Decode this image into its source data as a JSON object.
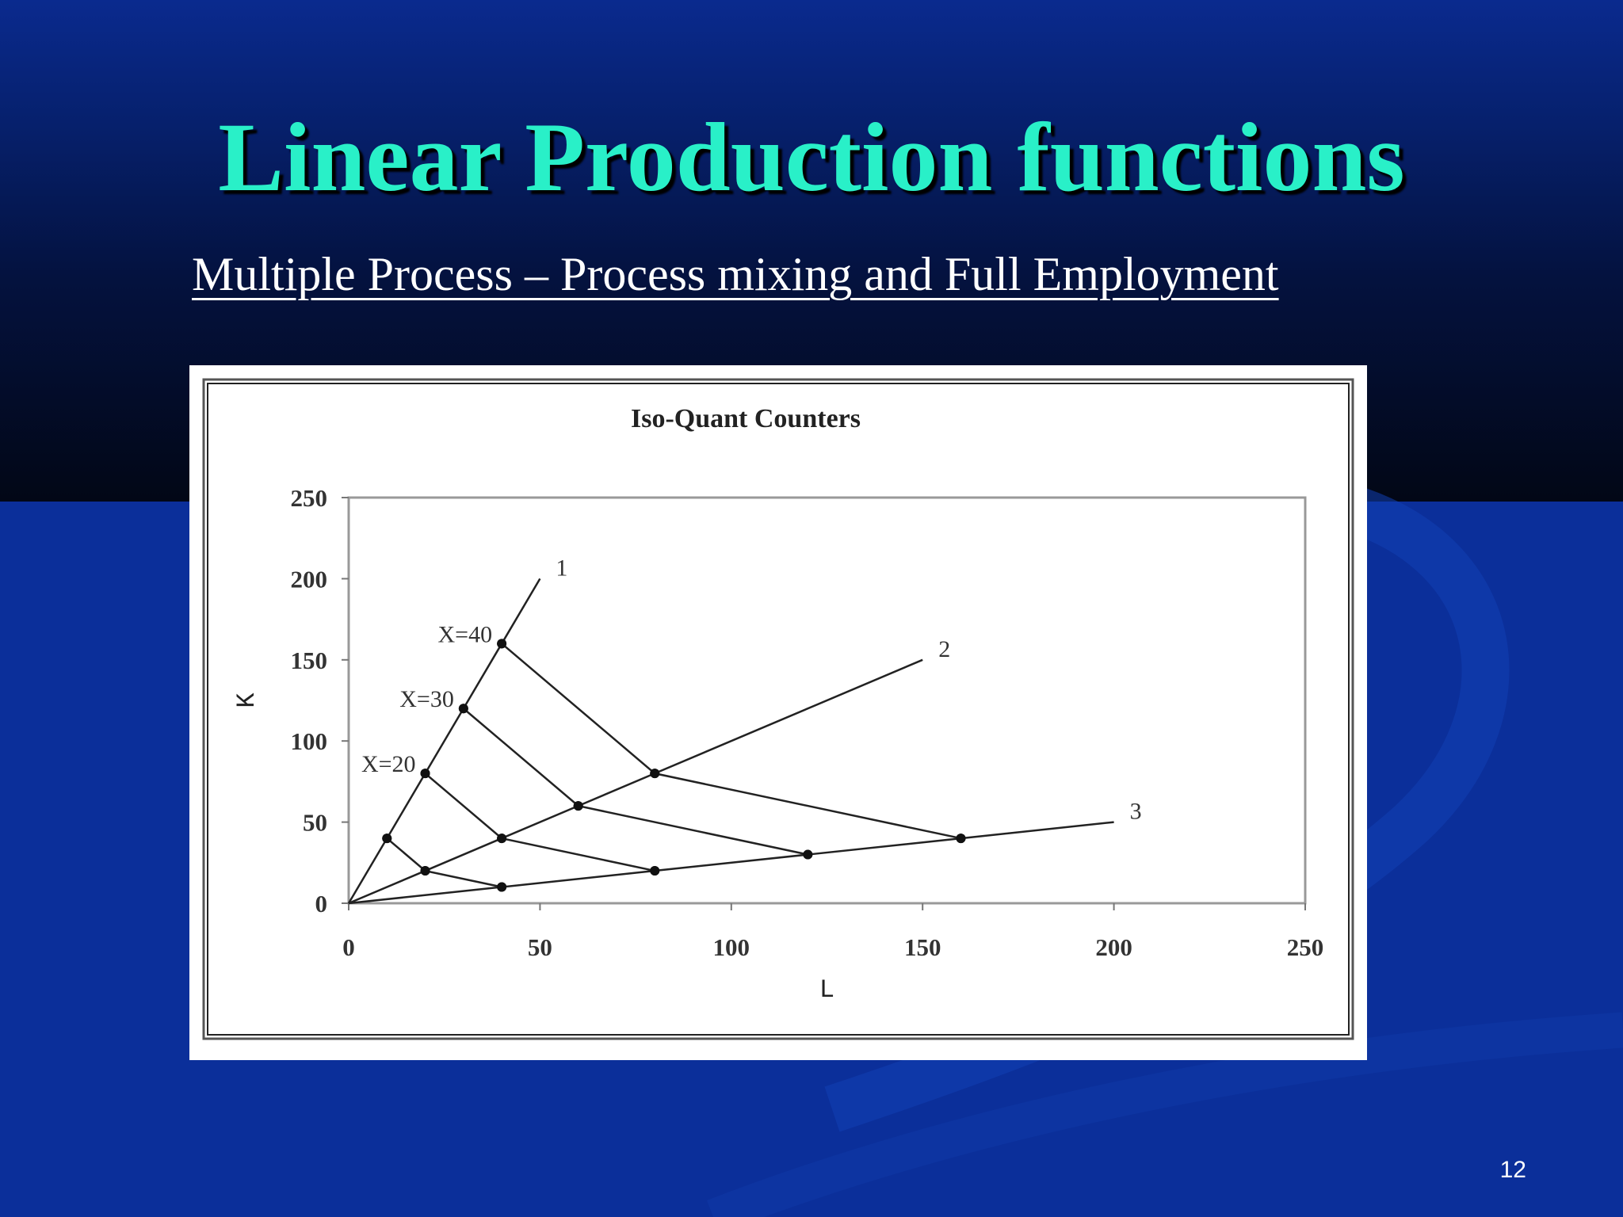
{
  "slide": {
    "title": "Linear Production functions",
    "subtitle": "Multiple Process – Process mixing and Full Employment",
    "page_number": "12",
    "colors": {
      "title": "#29f0c8",
      "background": "#0b2f9a",
      "text": "#ffffff"
    }
  },
  "chart_data": {
    "type": "line",
    "title": "Iso-Quant Counters",
    "xlabel": "L",
    "ylabel": "K",
    "xlim": [
      0,
      250
    ],
    "ylim": [
      0,
      250
    ],
    "xticks": [
      0,
      50,
      100,
      150,
      200,
      250
    ],
    "yticks": [
      0,
      50,
      100,
      150,
      200,
      250
    ],
    "grid": false,
    "series": [
      {
        "name": "1",
        "kind": "process",
        "points": [
          [
            0,
            0
          ],
          [
            10,
            40
          ],
          [
            20,
            80
          ],
          [
            30,
            120
          ],
          [
            40,
            160
          ],
          [
            50,
            200
          ]
        ]
      },
      {
        "name": "2",
        "kind": "process",
        "points": [
          [
            0,
            0
          ],
          [
            20,
            20
          ],
          [
            40,
            40
          ],
          [
            60,
            60
          ],
          [
            80,
            80
          ],
          [
            150,
            150
          ]
        ]
      },
      {
        "name": "3",
        "kind": "process",
        "points": [
          [
            0,
            0
          ],
          [
            40,
            10
          ],
          [
            80,
            20
          ],
          [
            120,
            30
          ],
          [
            160,
            40
          ],
          [
            200,
            50
          ]
        ]
      },
      {
        "name": "",
        "kind": "isoquant",
        "points": [
          [
            10,
            40
          ],
          [
            20,
            20
          ],
          [
            40,
            10
          ]
        ]
      },
      {
        "name": "X=20",
        "kind": "isoquant",
        "points": [
          [
            20,
            80
          ],
          [
            40,
            40
          ],
          [
            80,
            20
          ]
        ]
      },
      {
        "name": "X=30",
        "kind": "isoquant",
        "points": [
          [
            30,
            120
          ],
          [
            60,
            60
          ],
          [
            120,
            30
          ]
        ]
      },
      {
        "name": "X=40",
        "kind": "isoquant",
        "points": [
          [
            40,
            160
          ],
          [
            80,
            80
          ],
          [
            160,
            40
          ]
        ]
      }
    ]
  }
}
